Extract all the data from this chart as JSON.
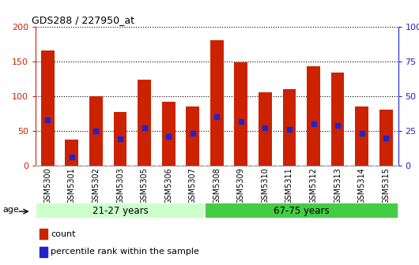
{
  "title": "GDS288 / 227950_at",
  "samples": [
    "GSM5300",
    "GSM5301",
    "GSM5302",
    "GSM5303",
    "GSM5305",
    "GSM5306",
    "GSM5307",
    "GSM5308",
    "GSM5309",
    "GSM5310",
    "GSM5311",
    "GSM5312",
    "GSM5313",
    "GSM5314",
    "GSM5315"
  ],
  "counts": [
    165,
    37,
    100,
    77,
    124,
    92,
    85,
    180,
    148,
    106,
    110,
    143,
    134,
    85,
    80
  ],
  "percentile_ranks": [
    33,
    6,
    25,
    19,
    27,
    21,
    23,
    35,
    32,
    27,
    26,
    30,
    29,
    23,
    20
  ],
  "n_group1": 7,
  "n_group2": 8,
  "group1_label": "21-27 years",
  "group2_label": "67-75 years",
  "age_label": "age",
  "bar_color": "#cc2200",
  "dot_color": "#2222cc",
  "group1_color": "#ccffcc",
  "group2_color": "#44cc44",
  "ylim_left": [
    0,
    200
  ],
  "ylim_right": [
    0,
    100
  ],
  "yticks_left": [
    0,
    50,
    100,
    150,
    200
  ],
  "yticks_right": [
    0,
    25,
    50,
    75,
    100
  ],
  "legend_count": "count",
  "legend_percentile": "percentile rank within the sample",
  "xtick_bg": "#cccccc",
  "plot_bg": "#ffffff"
}
